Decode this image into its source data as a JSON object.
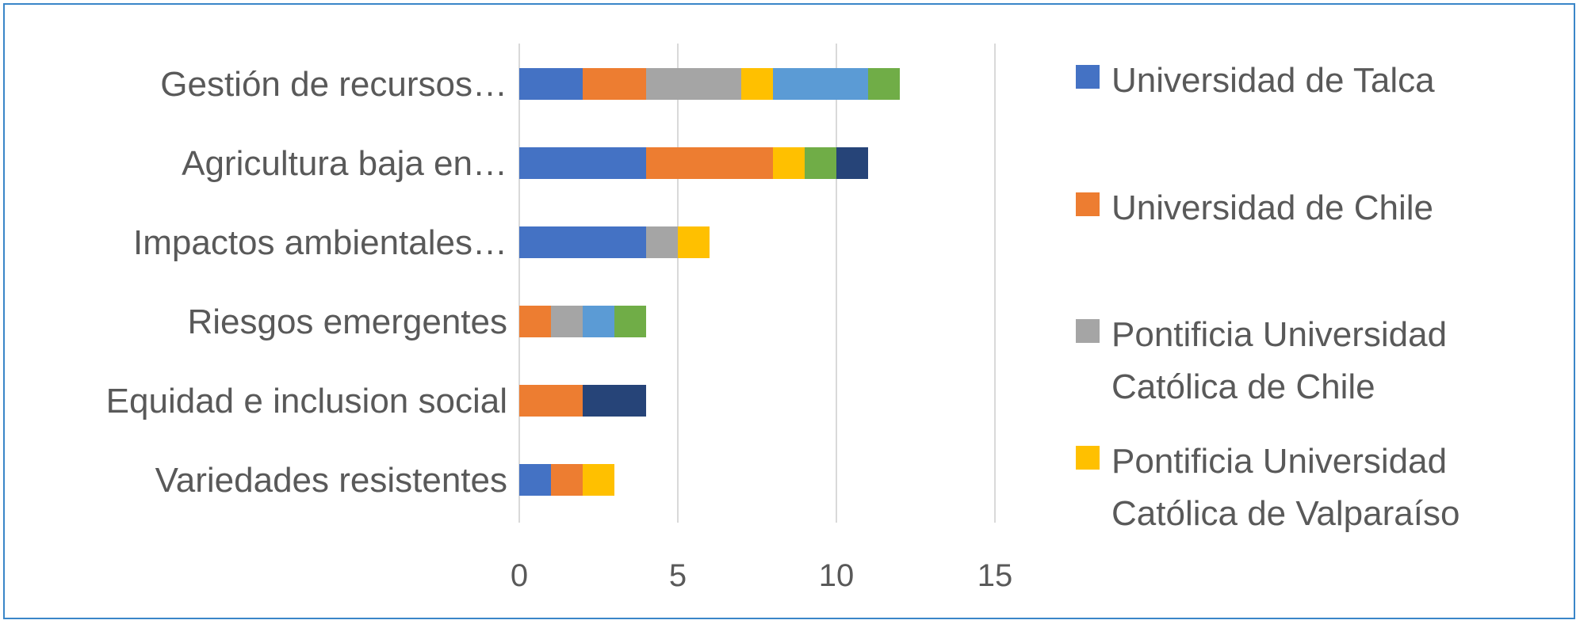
{
  "chart_data": {
    "type": "bar",
    "orientation": "horizontal",
    "stacked": true,
    "categories": [
      "Gestión de recursos…",
      "Agricultura baja en…",
      "Impactos ambientales…",
      "Riesgos emergentes",
      "Equidad e inclusion social",
      "Variedades resistentes"
    ],
    "series": [
      {
        "name": "Universidad de Talca",
        "color": "#4472c4",
        "values": [
          2,
          4,
          4,
          0,
          0,
          1
        ]
      },
      {
        "name": "Universidad de Chile",
        "color": "#ed7d31",
        "values": [
          2,
          4,
          0,
          1,
          2,
          1
        ]
      },
      {
        "name": "Pontificia Universidad Católica de Chile",
        "color": "#a5a5a5",
        "values": [
          3,
          0,
          1,
          1,
          0,
          0
        ]
      },
      {
        "name": "Pontificia Universidad Católica de Valparaíso",
        "color": "#ffc000",
        "values": [
          1,
          1,
          1,
          0,
          0,
          1
        ]
      },
      {
        "name": "",
        "color": "#5b9bd5",
        "values": [
          3,
          0,
          0,
          1,
          0,
          0
        ]
      },
      {
        "name": "",
        "color": "#70ad47",
        "values": [
          1,
          1,
          0,
          1,
          0,
          0
        ]
      },
      {
        "name": "",
        "color": "#264478",
        "values": [
          0,
          1,
          0,
          0,
          2,
          0
        ]
      }
    ],
    "legend_lines": [
      [
        "Universidad de Talca"
      ],
      [
        "Universidad de Chile"
      ],
      [
        "Pontificia Universidad",
        "Católica de Chile"
      ],
      [
        "Pontificia Universidad",
        "Católica de Valparaíso"
      ]
    ],
    "xlim": [
      0,
      15
    ],
    "xticks": [
      "0",
      "5",
      "10",
      "15"
    ],
    "grid": true,
    "legend_position": "right",
    "title": "",
    "xlabel": "",
    "ylabel": ""
  }
}
